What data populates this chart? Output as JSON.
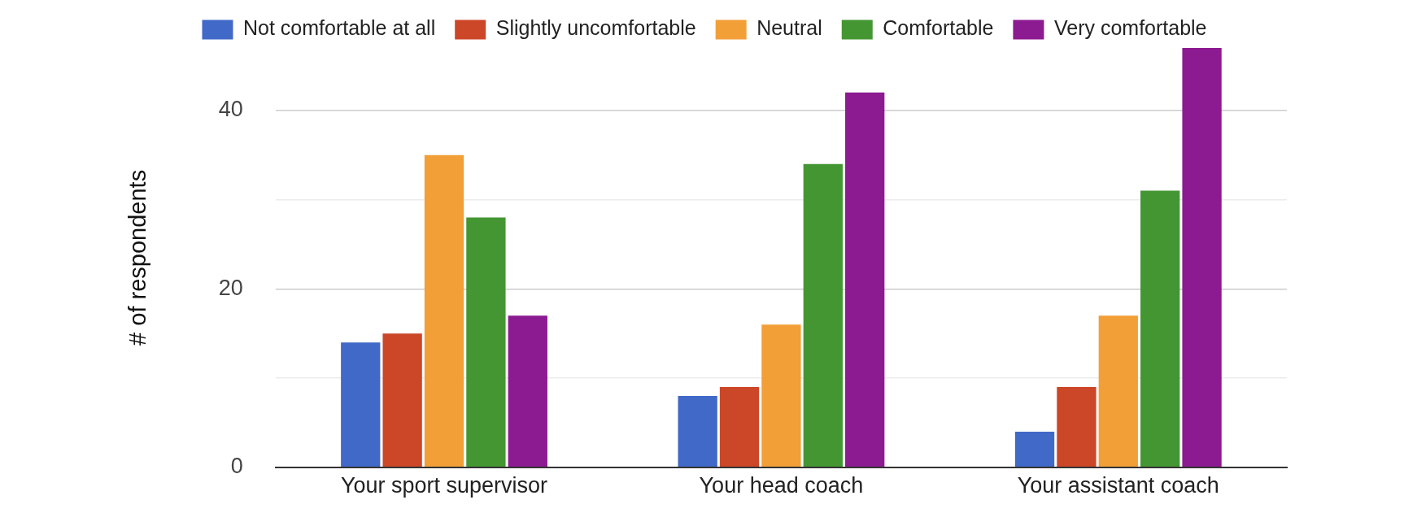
{
  "chart_data": {
    "type": "bar",
    "ylabel": "# of respondents",
    "categories": [
      "Your sport supervisor",
      "Your head coach",
      "Your assistant coach"
    ],
    "series": [
      {
        "name": "Not comfortable at all",
        "color": "#4169c8",
        "values": [
          14,
          8,
          4
        ]
      },
      {
        "name": "Slightly uncomfortable",
        "color": "#cc4628",
        "values": [
          15,
          9,
          9
        ]
      },
      {
        "name": "Neutral",
        "color": "#f29f38",
        "values": [
          35,
          16,
          17
        ]
      },
      {
        "name": "Comfortable",
        "color": "#449632",
        "values": [
          28,
          34,
          31
        ]
      },
      {
        "name": "Very comfortable",
        "color": "#8c1a90",
        "values": [
          17,
          42,
          47
        ]
      }
    ],
    "ylim": [
      0,
      47
    ],
    "yticks": [
      0,
      {
        "value": 10,
        "label": null
      },
      20,
      {
        "value": 30,
        "label": null
      },
      40
    ],
    "grid": "y",
    "legend": "top"
  }
}
